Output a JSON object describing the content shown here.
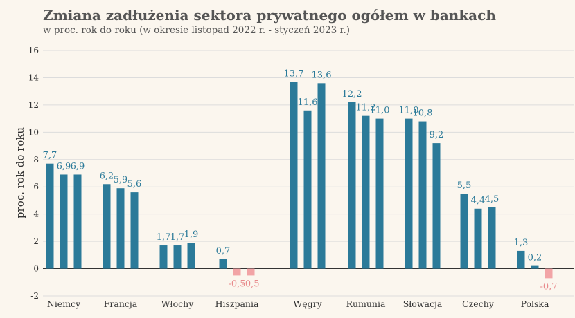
{
  "chart_data": {
    "type": "bar",
    "title": "Zmiana zadłużenia sektora prywatnego ogółem w bankach",
    "subtitle": "w proc. rok do roku (w okresie listopad 2022 r. - styczeń 2023 r.)",
    "ylabel": "proc. rok do roku",
    "ylim": [
      -2,
      16
    ],
    "yticks": [
      "-2",
      "0",
      "2",
      "4",
      "6",
      "8",
      "10",
      "12",
      "14",
      "16"
    ],
    "grid": true,
    "categories": [
      "Niemcy",
      "Francja",
      "Włochy",
      "Hiszpania",
      "Węgry",
      "Rumunia",
      "Słowacja",
      "Czechy",
      "Polska"
    ],
    "values": [
      [
        7.7,
        6.9,
        6.9
      ],
      [
        6.2,
        5.9,
        5.6
      ],
      [
        1.7,
        1.7,
        1.9
      ],
      [
        0.7,
        -0.5,
        -0.5
      ],
      [
        13.7,
        11.6,
        13.6
      ],
      [
        12.2,
        11.2,
        11.0
      ],
      [
        11.0,
        10.8,
        9.2
      ],
      [
        5.5,
        4.4,
        4.5
      ],
      [
        1.3,
        0.2,
        -0.7
      ]
    ],
    "labels": [
      [
        "7,7",
        "6,9",
        "6,9"
      ],
      [
        "6,2",
        "5,9",
        "5,6"
      ],
      [
        "1,7",
        "1,7",
        "1,9"
      ],
      [
        "0,7",
        "-0,5",
        "-0,5"
      ],
      [
        "13,7",
        "11,6",
        "13,6"
      ],
      [
        "12,2",
        "11,2",
        "11,0"
      ],
      [
        "11,0",
        "10,8",
        "9,2"
      ],
      [
        "5,5",
        "4,4",
        "4,5"
      ],
      [
        "1,3",
        "0,2",
        "-0,7"
      ]
    ],
    "colors": {
      "positive": "#2b7a99",
      "negative": "#f2a4a6",
      "label_positive": "#2b7a99",
      "label_negative": "#e88a8c",
      "grid": "#dcdcdc",
      "axis": "#333333"
    }
  }
}
